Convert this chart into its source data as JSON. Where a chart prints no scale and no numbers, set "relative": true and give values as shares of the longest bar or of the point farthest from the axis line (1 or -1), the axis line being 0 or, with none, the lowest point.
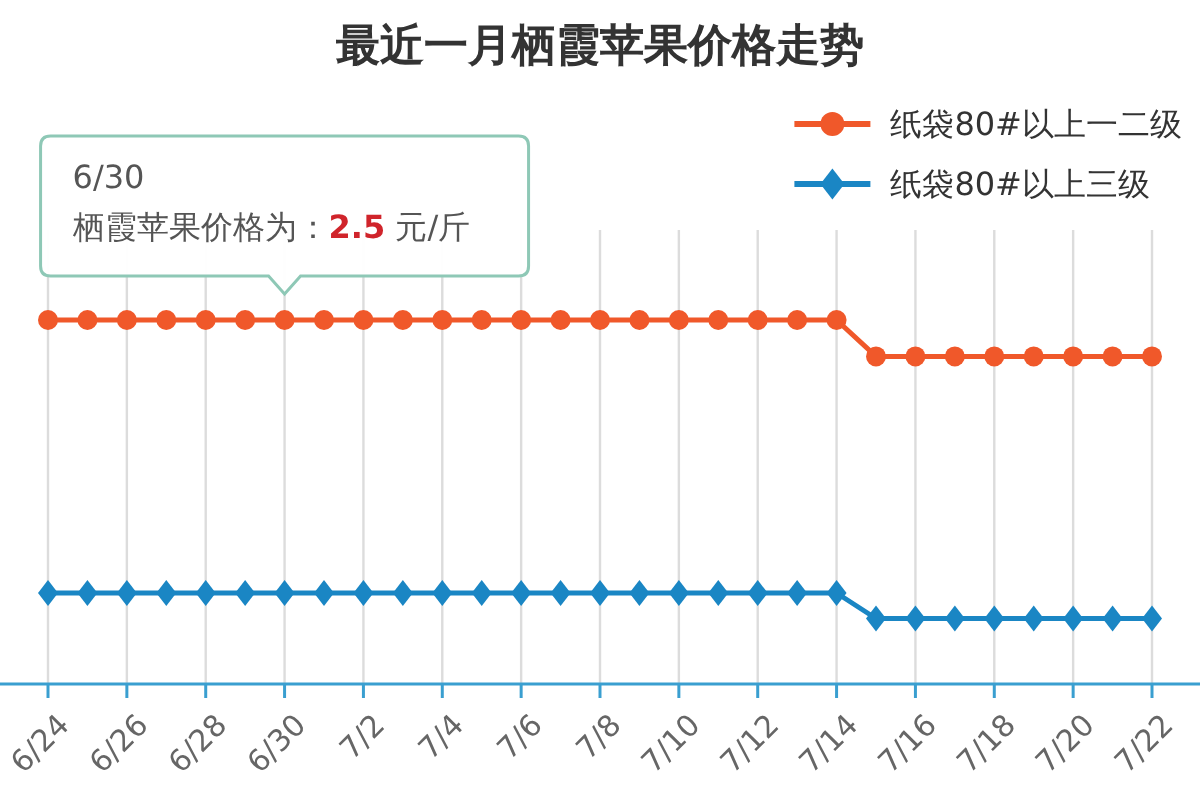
{
  "chart_data": {
    "type": "line",
    "title": "最近一月栖霞苹果价格走势",
    "relative": true,
    "categories": [
      "6/24",
      null,
      "6/26",
      null,
      "6/28",
      null,
      "6/30",
      null,
      "7/2",
      null,
      "7/4",
      null,
      "7/6",
      null,
      "7/8",
      null,
      "7/10",
      null,
      "7/12",
      null,
      "7/14",
      null,
      "7/16",
      null,
      "7/18",
      null,
      "7/20",
      null,
      "7/22"
    ],
    "series": [
      {
        "name": "纸袋80#以上一二级",
        "color": "#f0582a",
        "marker": "circle",
        "values": [
          1,
          1,
          1,
          1,
          1,
          1,
          1,
          1,
          1,
          1,
          1,
          1,
          1,
          1,
          1,
          1,
          1,
          1,
          1,
          1,
          1,
          0.9,
          0.9,
          0.9,
          0.9,
          0.9,
          0.9,
          0.9,
          0.9
        ]
      },
      {
        "name": "纸袋80#以上三级",
        "color": "#1a86c4",
        "marker": "diamond",
        "values": [
          0.25,
          0.25,
          0.25,
          0.25,
          0.25,
          0.25,
          0.25,
          0.25,
          0.25,
          0.25,
          0.25,
          0.25,
          0.25,
          0.25,
          0.25,
          0.25,
          0.25,
          0.25,
          0.25,
          0.25,
          0.25,
          0.18,
          0.18,
          0.18,
          0.18,
          0.18,
          0.18,
          0.18,
          0.18
        ]
      }
    ],
    "annotations": [
      {
        "text": "6/30\n栖霞苹果价格为：2.5 元/斤",
        "x": "6/30",
        "y": 1
      }
    ],
    "grid": "x",
    "legend": "top right"
  }
}
